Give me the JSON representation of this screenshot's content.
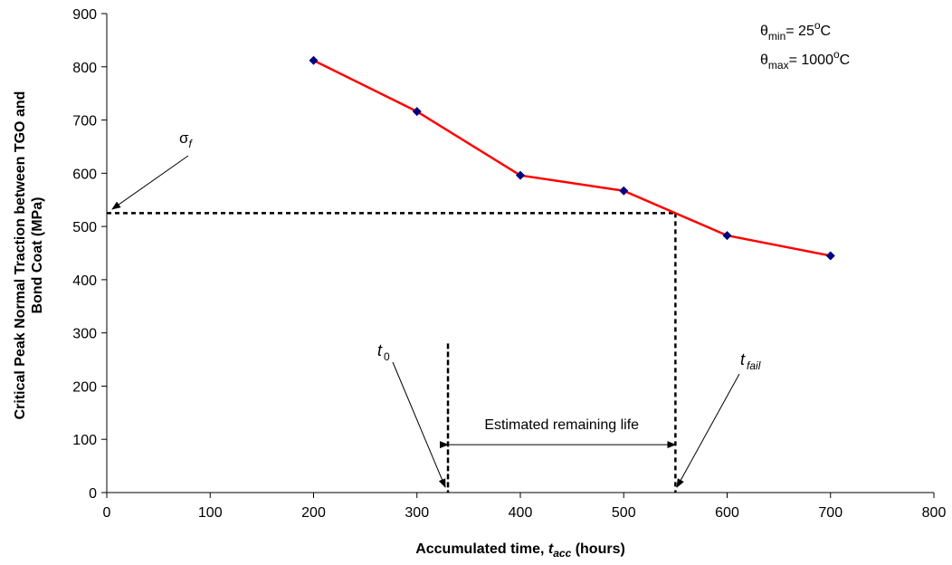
{
  "chart_data": {
    "type": "line",
    "xlabel": {
      "prefix": "Accumulated time, ",
      "var": "t",
      "sub": "acc",
      "suffix": " (hours)"
    },
    "ylabel": [
      "Critical Peak Normal Traction between TGO and",
      "Bond Coat (MPa)"
    ],
    "xlim": [
      0,
      800
    ],
    "ylim": [
      0,
      900
    ],
    "xticks": [
      0,
      100,
      200,
      300,
      400,
      500,
      600,
      700,
      800
    ],
    "yticks": [
      0,
      100,
      200,
      300,
      400,
      500,
      600,
      700,
      800,
      900
    ],
    "grid": false,
    "series": [
      {
        "x": [
          200,
          300,
          400,
          500,
          600,
          700
        ],
        "y": [
          812,
          716,
          596,
          567,
          483,
          445
        ],
        "line_color": "#ff0000",
        "marker": "diamond",
        "marker_color": "#000080"
      }
    ],
    "threshold": {
      "y": 525,
      "x_end": 550
    },
    "t0_line": {
      "x": 330,
      "y_top": 280
    },
    "tfail_line": {
      "x": 550
    },
    "remaining_life": {
      "x_start": 330,
      "x_end": 550,
      "y": 90,
      "label": "Estimated remaining life"
    },
    "annotations": {
      "sigma_f": {
        "symbol": "σ",
        "sub": "f"
      },
      "t0": {
        "symbol": "t",
        "sub": "0"
      },
      "tfail": {
        "symbol": "t",
        "sub": "fail"
      }
    },
    "legend_box": {
      "line1": {
        "symbol": "θ",
        "sub": "min",
        "value": "= 25",
        "unit_sup": "o",
        "unit": "C"
      },
      "line2": {
        "symbol": "θ",
        "sub": "max",
        "value": "= 1000",
        "unit_sup": "o",
        "unit": "C"
      }
    }
  }
}
